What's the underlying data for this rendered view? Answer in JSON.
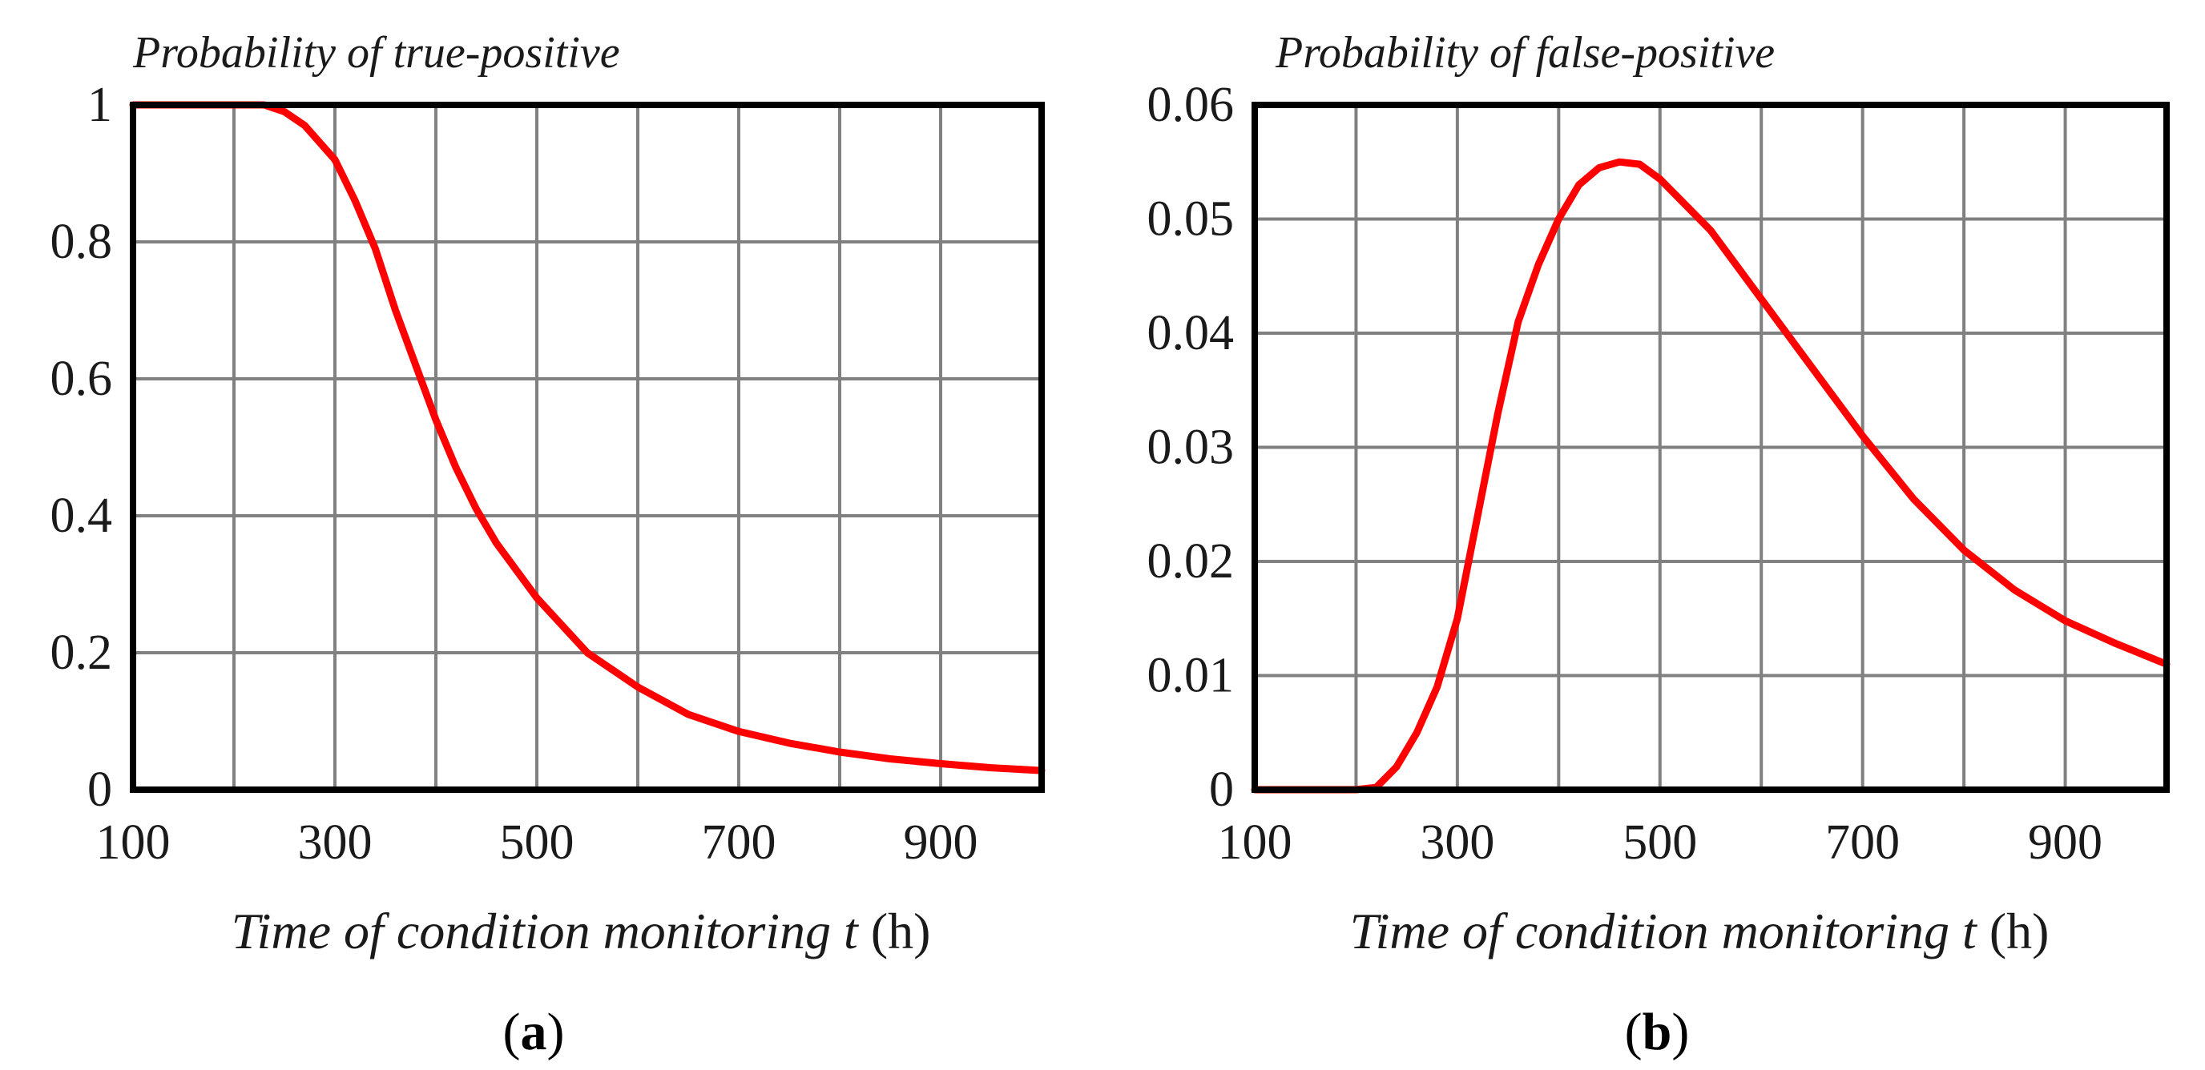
{
  "chart_data": [
    {
      "type": "line",
      "title": "Probability of true-positive",
      "xlabel": "Time of condition monitoring",
      "xlabel_var": "t",
      "xlabel_unit": "(h)",
      "panel_label": "a",
      "xlim": [
        100,
        1000
      ],
      "ylim": [
        0,
        1
      ],
      "x_ticks": [
        100,
        300,
        500,
        700,
        900
      ],
      "x_tick_labels": [
        "100",
        "300",
        "500",
        "700",
        "900"
      ],
      "x_grid": [
        100,
        200,
        300,
        400,
        500,
        600,
        700,
        800,
        900,
        1000
      ],
      "y_ticks": [
        0,
        0.2,
        0.4,
        0.6,
        0.8,
        1
      ],
      "y_tick_labels": [
        "0",
        "0.2",
        "0.4",
        "0.6",
        "0.8",
        "1"
      ],
      "grid": true,
      "series": [
        {
          "name": "true-positive",
          "color": "#ff0000",
          "x": [
            100,
            150,
            200,
            230,
            250,
            270,
            300,
            320,
            340,
            360,
            380,
            400,
            420,
            440,
            460,
            480,
            500,
            550,
            600,
            650,
            700,
            750,
            800,
            850,
            900,
            950,
            1000
          ],
          "y": [
            1.0,
            1.0,
            1.0,
            1.0,
            0.99,
            0.97,
            0.92,
            0.86,
            0.79,
            0.7,
            0.62,
            0.54,
            0.47,
            0.41,
            0.36,
            0.32,
            0.28,
            0.2,
            0.15,
            0.11,
            0.085,
            0.068,
            0.055,
            0.045,
            0.038,
            0.032,
            0.028
          ]
        }
      ]
    },
    {
      "type": "line",
      "title": "Probability of false-positive",
      "xlabel": "Time of condition monitoring",
      "xlabel_var": "t",
      "xlabel_unit": "(h)",
      "panel_label": "b",
      "xlim": [
        100,
        1000
      ],
      "ylim": [
        0,
        0.06
      ],
      "x_ticks": [
        100,
        300,
        500,
        700,
        900
      ],
      "x_tick_labels": [
        "100",
        "300",
        "500",
        "700",
        "900"
      ],
      "x_grid": [
        100,
        200,
        300,
        400,
        500,
        600,
        700,
        800,
        900,
        1000
      ],
      "y_ticks": [
        0,
        0.01,
        0.02,
        0.03,
        0.04,
        0.05,
        0.06
      ],
      "y_tick_labels": [
        "0",
        "0.01",
        "0.02",
        "0.03",
        "0.04",
        "0.05",
        "0.06"
      ],
      "grid": true,
      "series": [
        {
          "name": "false-positive",
          "color": "#ff0000",
          "x": [
            100,
            150,
            200,
            220,
            240,
            260,
            280,
            300,
            320,
            340,
            360,
            380,
            400,
            420,
            440,
            460,
            480,
            500,
            550,
            600,
            650,
            700,
            750,
            800,
            850,
            900,
            950,
            1000
          ],
          "y": [
            0.0,
            0.0,
            0.0,
            0.0002,
            0.002,
            0.005,
            0.009,
            0.015,
            0.024,
            0.033,
            0.041,
            0.046,
            0.05,
            0.053,
            0.0545,
            0.055,
            0.0548,
            0.0535,
            0.049,
            0.043,
            0.037,
            0.031,
            0.0255,
            0.021,
            0.0175,
            0.0148,
            0.0128,
            0.011
          ]
        }
      ]
    }
  ]
}
